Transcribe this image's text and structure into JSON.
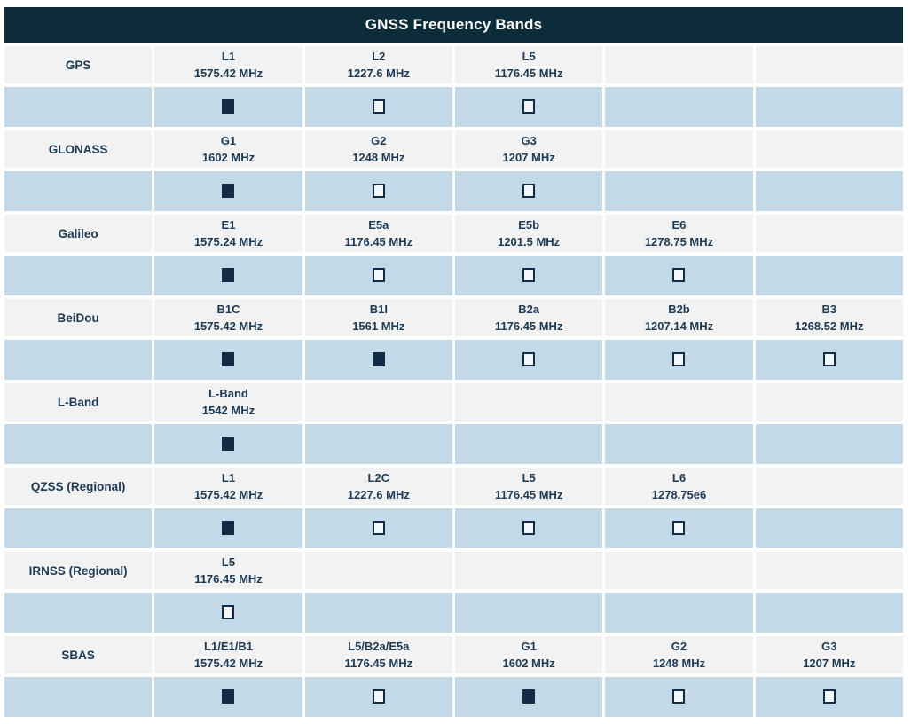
{
  "title": "GNSS Frequency Bands",
  "colors": {
    "page_bg": "#ffffff",
    "header_bg": "#0d2c3a",
    "header_text": "#ffffff",
    "label_row_bg": "#f2f2f3",
    "check_row_bg": "#c4d9e8",
    "cell_text": "#1d3a55",
    "checkbox_dark": "#112c44",
    "checkbox_empty_fill": "#f2f7fb"
  },
  "band_columns": 5,
  "systems": [
    {
      "name": "GPS",
      "bands": [
        {
          "band": "L1",
          "freq": "1575.42 MHz",
          "checked": true
        },
        {
          "band": "L2",
          "freq": "1227.6 MHz",
          "checked": false
        },
        {
          "band": "L5",
          "freq": "1176.45 MHz",
          "checked": false
        }
      ]
    },
    {
      "name": "GLONASS",
      "bands": [
        {
          "band": "G1",
          "freq": "1602 MHz",
          "checked": true
        },
        {
          "band": "G2",
          "freq": "1248 MHz",
          "checked": false
        },
        {
          "band": "G3",
          "freq": "1207 MHz",
          "checked": false
        }
      ]
    },
    {
      "name": "Galileo",
      "bands": [
        {
          "band": "E1",
          "freq": "1575.24 MHz",
          "checked": true
        },
        {
          "band": "E5a",
          "freq": "1176.45 MHz",
          "checked": false
        },
        {
          "band": "E5b",
          "freq": "1201.5 MHz",
          "checked": false
        },
        {
          "band": "E6",
          "freq": "1278.75 MHz",
          "checked": false
        }
      ]
    },
    {
      "name": "BeiDou",
      "bands": [
        {
          "band": "B1C",
          "freq": "1575.42 MHz",
          "checked": true
        },
        {
          "band": "B1I",
          "freq": "1561 MHz",
          "checked": true
        },
        {
          "band": "B2a",
          "freq": "1176.45 MHz",
          "checked": false
        },
        {
          "band": "B2b",
          "freq": "1207.14 MHz",
          "checked": false
        },
        {
          "band": "B3",
          "freq": "1268.52 MHz",
          "checked": false
        }
      ]
    },
    {
      "name": "L-Band",
      "bands": [
        {
          "band": "L-Band",
          "freq": "1542 MHz",
          "checked": true
        }
      ]
    },
    {
      "name": "QZSS (Regional)",
      "bands": [
        {
          "band": "L1",
          "freq": "1575.42 MHz",
          "checked": true
        },
        {
          "band": "L2C",
          "freq": "1227.6 MHz",
          "checked": false
        },
        {
          "band": "L5",
          "freq": "1176.45 MHz",
          "checked": false
        },
        {
          "band": "L6",
          "freq": "1278.75e6",
          "checked": false
        }
      ]
    },
    {
      "name": "IRNSS (Regional)",
      "bands": [
        {
          "band": "L5",
          "freq": "1176.45 MHz",
          "checked": false
        }
      ]
    },
    {
      "name": "SBAS",
      "bands": [
        {
          "band": "L1/E1/B1",
          "freq": "1575.42 MHz",
          "checked": true
        },
        {
          "band": "L5/B2a/E5a",
          "freq": "1176.45 MHz",
          "checked": false
        },
        {
          "band": "G1",
          "freq": "1602 MHz",
          "checked": true
        },
        {
          "band": "G2",
          "freq": "1248 MHz",
          "checked": false
        },
        {
          "band": "G3",
          "freq": "1207 MHz",
          "checked": false
        }
      ]
    }
  ]
}
